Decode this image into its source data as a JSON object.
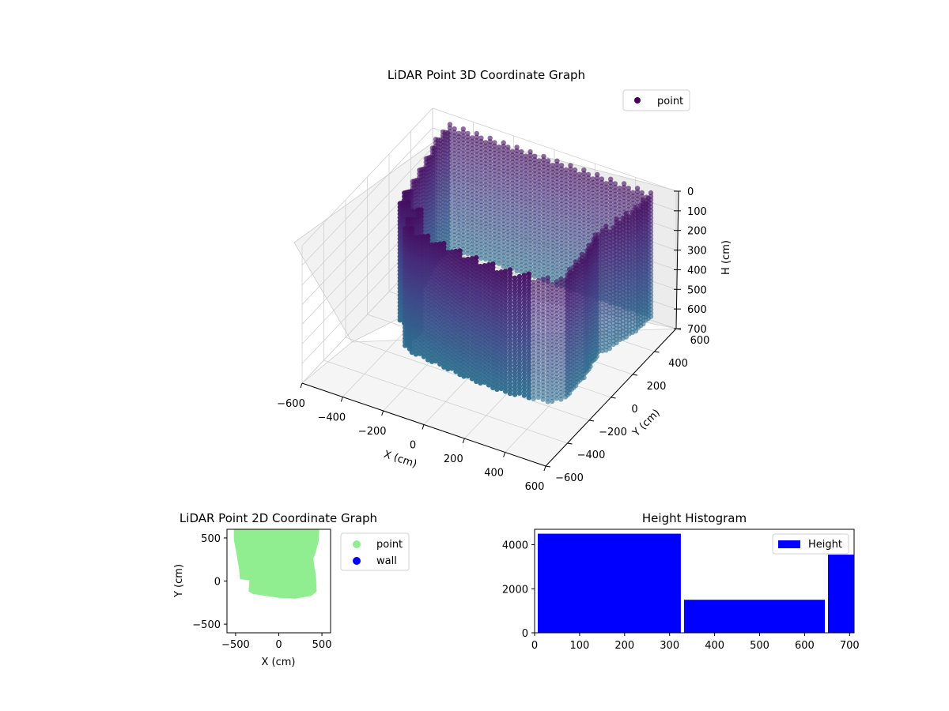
{
  "chart_data": [
    {
      "type": "scatter",
      "projection": "3d",
      "title": "LiDAR Point 3D Coordinate Graph",
      "xlabel": "X (cm)",
      "ylabel": "Y (cm)",
      "zlabel": "H (cm)",
      "xlim": [
        -600,
        600
      ],
      "ylim": [
        -600,
        600
      ],
      "zlim": [
        0,
        700
      ],
      "z_inverted": true,
      "x_ticks": [
        "−600",
        "−400",
        "−200",
        "0",
        "200",
        "400",
        "600"
      ],
      "y_ticks": [
        "−600",
        "−400",
        "−200",
        "0",
        "200",
        "400",
        "600"
      ],
      "z_ticks": [
        "0",
        "100",
        "200",
        "300",
        "400",
        "500",
        "600",
        "700"
      ],
      "legend": {
        "position": "top-right",
        "entries": [
          {
            "label": "point",
            "color": "#440154"
          }
        ]
      },
      "colormap": "viridis",
      "shape": {
        "description_type": "walled room point cloud",
        "x_range": [
          -460,
          470
        ],
        "y_range": [
          -210,
          610
        ],
        "h_range": [
          0,
          710
        ]
      },
      "grid": true
    },
    {
      "type": "scatter",
      "title": "LiDAR Point 2D Coordinate Graph",
      "xlabel": "X (cm)",
      "ylabel": "Y (cm)",
      "xlim": [
        -600,
        600
      ],
      "ylim": [
        -600,
        600
      ],
      "x_ticks": [
        "−500",
        "0",
        "500"
      ],
      "y_ticks": [
        "−500",
        "0",
        "500"
      ],
      "legend": {
        "position": "outside-right",
        "entries": [
          {
            "label": "point",
            "color": "#90ee90"
          },
          {
            "label": "wall",
            "color": "#0000ff"
          }
        ]
      },
      "footprint_outline": [
        [
          -520,
          610
        ],
        [
          470,
          610
        ],
        [
          465,
          480
        ],
        [
          430,
          340
        ],
        [
          400,
          260
        ],
        [
          410,
          180
        ],
        [
          430,
          70
        ],
        [
          440,
          -120
        ],
        [
          380,
          -170
        ],
        [
          190,
          -205
        ],
        [
          0,
          -195
        ],
        [
          -300,
          -150
        ],
        [
          -350,
          -120
        ],
        [
          -340,
          10
        ],
        [
          -450,
          20
        ],
        [
          -460,
          140
        ],
        [
          -490,
          320
        ],
        [
          -520,
          480
        ]
      ]
    },
    {
      "type": "bar",
      "subtype": "histogram",
      "title": "Height Histogram",
      "xlim": [
        0,
        710
      ],
      "ylim": [
        0,
        4700
      ],
      "x_ticks": [
        "0",
        "100",
        "200",
        "300",
        "400",
        "500",
        "600",
        "700"
      ],
      "y_ticks": [
        "0",
        "2000",
        "4000"
      ],
      "bins": [
        {
          "start": 0,
          "end": 325,
          "count": 4500
        },
        {
          "start": 325,
          "end": 645,
          "count": 1500
        },
        {
          "start": 645,
          "end": 710,
          "count": 3550
        }
      ],
      "color": "#0000ff",
      "legend": {
        "position": "top-right",
        "entries": [
          {
            "label": "Height",
            "color": "#0000ff"
          }
        ]
      }
    }
  ]
}
